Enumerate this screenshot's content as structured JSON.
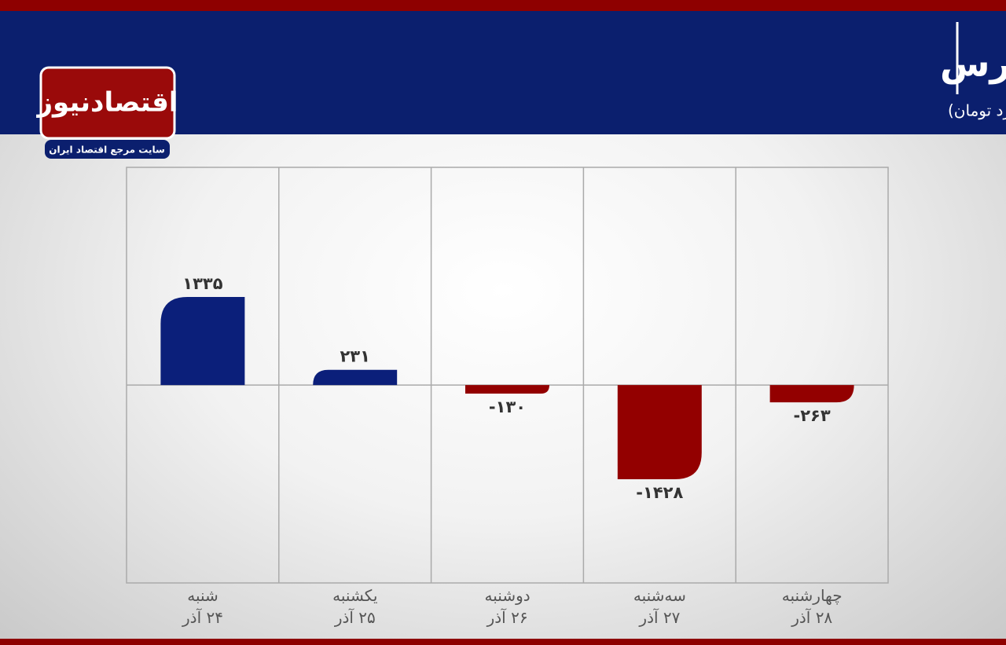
{
  "logo": {
    "name": "اقتصادنیوز",
    "tagline": "سایت مرجع اقتصاد ایران"
  },
  "chart_data": {
    "type": "bar",
    "title": "روند ورود و خروج پول حقیقی در بورس",
    "subtitle": "(واحد:میلیارد تومان)",
    "categories": [
      "شنبه\n۲۴ آذر",
      "یکشنبه\n۲۵ آذر",
      "دوشنبه\n۲۶ آذر",
      "سه‌شنبه\n۲۷ آذر",
      "چهارشنبه\n۲۸ آذر"
    ],
    "values": [
      1335,
      231,
      -130,
      -1428,
      -263
    ],
    "value_labels": [
      "۱۳۳۵",
      "۲۳۱",
      "-۱۳۰",
      "-۱۴۲۸",
      "-۲۶۳"
    ],
    "color": "#0b1f7a",
    "negative_color": "#930000",
    "ylim": [
      -3000,
      3300
    ],
    "grid": true
  }
}
